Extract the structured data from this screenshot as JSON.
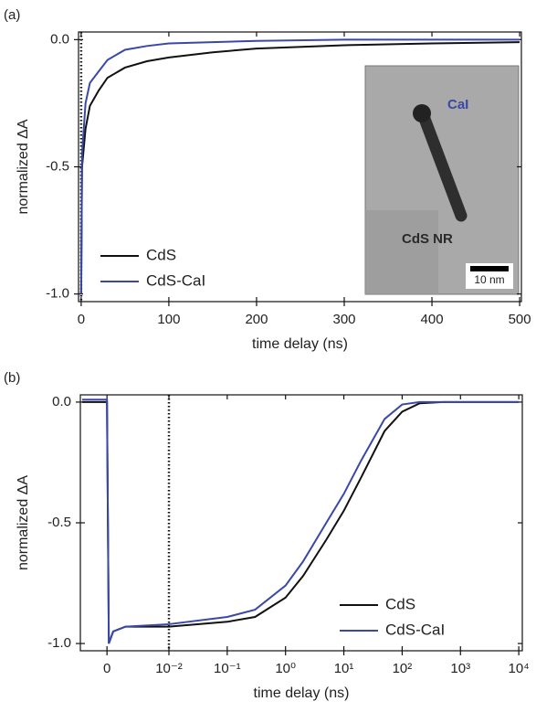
{
  "chart_data": [
    {
      "type": "line",
      "panel_label": "(a)",
      "x_label": "time delay (ns)",
      "y_label": "normalized ΔA",
      "x": [
        0,
        1,
        5,
        10,
        20,
        30,
        50,
        75,
        100,
        150,
        200,
        300,
        400,
        500
      ],
      "series": [
        {
          "name": "CdS",
          "color": "#111111",
          "values": [
            -1,
            -0.5,
            -0.35,
            -0.26,
            -0.2,
            -0.15,
            -0.11,
            -0.085,
            -0.07,
            -0.05,
            -0.035,
            -0.022,
            -0.015,
            -0.01
          ]
        },
        {
          "name": "CdS-CaI",
          "color": "#3a48a8",
          "values": [
            -1,
            -0.45,
            -0.25,
            -0.17,
            -0.125,
            -0.08,
            -0.04,
            -0.025,
            -0.015,
            -0.01,
            -0.005,
            0,
            0,
            0
          ]
        }
      ],
      "xlim": [
        -3,
        502
      ],
      "ylim": [
        -1.03,
        0.03
      ],
      "xticks": [
        0,
        100,
        200,
        300,
        400,
        500
      ],
      "yticks": [
        {
          "value": 0,
          "label": "0.0"
        },
        {
          "value": -0.5,
          "label": "-0.5"
        },
        {
          "value": -1,
          "label": "-1.0"
        }
      ],
      "vline": 0,
      "xscale": "linear",
      "legend": "lower left",
      "inset": {
        "labels": [
          "CaI",
          "CdS NR"
        ],
        "scale_bar": "10 nm"
      }
    },
    {
      "type": "line",
      "panel_label": "(b)",
      "x_label": "time delay (ns)",
      "y_label": "normalized ΔA",
      "x": [
        -0.004,
        -0.001,
        0,
        0.0003,
        0.001,
        0.003,
        0.01,
        0.1,
        0.3,
        1,
        2,
        5,
        10,
        20,
        50,
        100,
        200,
        500,
        10000
      ],
      "series": [
        {
          "name": "CdS",
          "color": "#111111",
          "values": [
            0,
            0,
            0,
            -1,
            -0.95,
            -0.93,
            -0.93,
            -0.91,
            -0.89,
            -0.81,
            -0.72,
            -0.57,
            -0.45,
            -0.31,
            -0.12,
            -0.04,
            -0.005,
            0,
            0
          ]
        },
        {
          "name": "CdS-CaI",
          "color": "#3a48a8",
          "values": [
            0.01,
            0.01,
            0.01,
            -1,
            -0.95,
            -0.93,
            -0.92,
            -0.89,
            -0.86,
            -0.76,
            -0.66,
            -0.5,
            -0.38,
            -0.24,
            -0.07,
            -0.01,
            0,
            0,
            0
          ]
        }
      ],
      "xlim": [
        -0.0043,
        11500
      ],
      "ylim": [
        -1.03,
        0.03
      ],
      "xticks": [
        0,
        {
          "value": 0.01,
          "label": "10⁻²"
        },
        {
          "value": 0.1,
          "label": "10⁻¹"
        },
        {
          "value": 1,
          "label": "10⁰"
        },
        {
          "value": 10,
          "label": "10¹"
        },
        {
          "value": 100,
          "label": "10²"
        },
        {
          "value": 1000,
          "label": "10³"
        },
        {
          "value": 10000,
          "label": "10⁴"
        }
      ],
      "yticks": [
        {
          "value": 0,
          "label": "0.0"
        },
        {
          "value": -0.5,
          "label": "-0.5"
        },
        {
          "value": -1,
          "label": "-1.0"
        }
      ],
      "vline": 0.01,
      "xscale": "linear-log",
      "legend": "lower right"
    }
  ]
}
